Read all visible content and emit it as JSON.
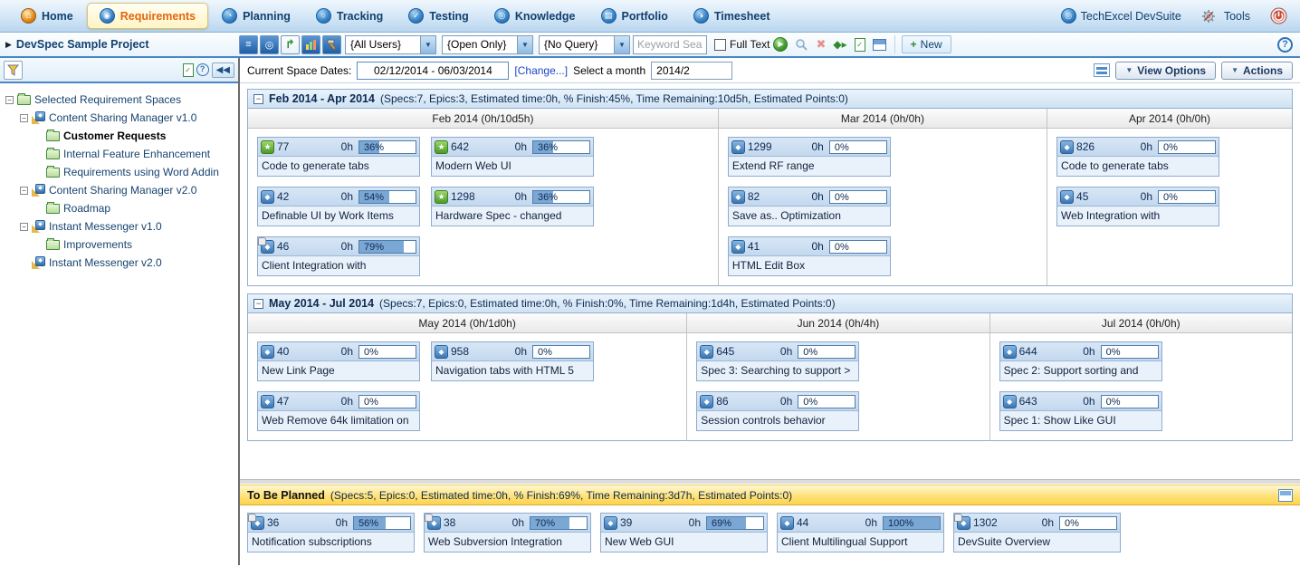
{
  "nav": {
    "tabs": [
      {
        "label": "Home",
        "icon": "home-icon",
        "glyph": "⌂",
        "active": false
      },
      {
        "label": "Requirements",
        "icon": "requirements-icon",
        "glyph": "◉",
        "active": true
      },
      {
        "label": "Planning",
        "icon": "planning-icon",
        "glyph": "◔",
        "active": false
      },
      {
        "label": "Tracking",
        "icon": "tracking-icon",
        "glyph": "○",
        "active": false
      },
      {
        "label": "Testing",
        "icon": "testing-icon",
        "glyph": "✓",
        "active": false
      },
      {
        "label": "Knowledge",
        "icon": "knowledge-icon",
        "glyph": "◎",
        "active": false
      },
      {
        "label": "Portfolio",
        "icon": "portfolio-icon",
        "glyph": "▤",
        "active": false
      },
      {
        "label": "Timesheet",
        "icon": "timesheet-icon",
        "glyph": "◑",
        "active": false
      }
    ],
    "brand": "TechExcel DevSuite",
    "tools_label": "Tools"
  },
  "toolbar": {
    "project": "DevSpec Sample Project",
    "view_icons": [
      "tree-view-icon",
      "cycle-view-icon",
      "branch-view-icon",
      "chart-view-icon",
      "design-view-icon"
    ],
    "filters": [
      {
        "value": "{All Users}"
      },
      {
        "value": "{Open Only}"
      },
      {
        "value": "{No Query}"
      }
    ],
    "keyword_placeholder": "Keyword Search",
    "full_text_label": "Full Text",
    "action_icons": [
      "go-icon",
      "search-icon",
      "clear-icon",
      "forward-icon",
      "report-icon",
      "panel-icon"
    ],
    "new_label": "New"
  },
  "sidebar": {
    "tree": [
      {
        "depth": 0,
        "icon": "folder",
        "label": "Selected Requirement Spaces",
        "expander": true
      },
      {
        "depth": 1,
        "icon": "project",
        "label": "Content Sharing Manager v1.0",
        "expander": true
      },
      {
        "depth": 2,
        "icon": "folder",
        "label": "Customer Requests",
        "bold": true
      },
      {
        "depth": 2,
        "icon": "folder",
        "label": "Internal Feature Enhancement"
      },
      {
        "depth": 2,
        "icon": "folder",
        "label": "Requirements using Word Addin"
      },
      {
        "depth": 1,
        "icon": "project",
        "label": "Content Sharing Manager v2.0",
        "expander": true
      },
      {
        "depth": 2,
        "icon": "folder",
        "label": "Roadmap"
      },
      {
        "depth": 1,
        "icon": "project",
        "label": "Instant Messenger v1.0",
        "expander": true
      },
      {
        "depth": 2,
        "icon": "folder",
        "label": "Improvements"
      },
      {
        "depth": 1,
        "icon": "project",
        "label": "Instant Messenger v2.0"
      }
    ]
  },
  "space_bar": {
    "dates_label": "Current Space Dates:",
    "dates_value": "02/12/2014 - 06/03/2014",
    "change_link": "[Change...]",
    "month_label": "Select a month",
    "month_value": "2014/2",
    "view_options_label": "View Options",
    "actions_label": "Actions"
  },
  "panels": [
    {
      "title": "Feb 2014 - Apr 2014",
      "stats": "(Specs:7, Epics:3, Estimated time:0h, % Finish:45%, Time Remaining:10d5h, Estimated Points:0)",
      "columns": [
        {
          "header": "Feb 2014 (0h/10d5h)",
          "width": "45%",
          "rows": [
            [
              {
                "id": "77",
                "icon": "epic",
                "hours": "0h",
                "percent": 36,
                "title": "Code to generate tabs"
              },
              {
                "id": "642",
                "icon": "epic",
                "hours": "0h",
                "percent": 36,
                "title": "Modern Web UI"
              }
            ],
            [
              {
                "id": "42",
                "icon": "spec",
                "hours": "0h",
                "percent": 54,
                "title": "Definable UI by Work Items"
              },
              {
                "id": "1298",
                "icon": "epic",
                "hours": "0h",
                "percent": 36,
                "title": "Hardware Spec - changed"
              }
            ],
            [
              {
                "id": "46",
                "icon": "spec-linked",
                "hours": "0h",
                "percent": 79,
                "title": "Client Integration with"
              }
            ]
          ]
        },
        {
          "header": "Mar 2014 (0h/0h)",
          "width": "31.5%",
          "rows": [
            [
              {
                "id": "1299",
                "icon": "spec",
                "hours": "0h",
                "percent": 0,
                "title": "Extend RF range"
              }
            ],
            [
              {
                "id": "82",
                "icon": "spec",
                "hours": "0h",
                "percent": 0,
                "title": "Save as.. Optimization"
              }
            ],
            [
              {
                "id": "41",
                "icon": "spec",
                "hours": "0h",
                "percent": 0,
                "title": "HTML Edit Box"
              }
            ]
          ]
        },
        {
          "header": "Apr 2014 (0h/0h)",
          "width": "23.5%",
          "rows": [
            [
              {
                "id": "826",
                "icon": "spec",
                "hours": "0h",
                "percent": 0,
                "title": "Code to generate tabs"
              }
            ],
            [
              {
                "id": "45",
                "icon": "spec",
                "hours": "0h",
                "percent": 0,
                "title": "Web Integration with"
              }
            ]
          ]
        }
      ],
      "body_min_height": 163
    },
    {
      "title": "May 2014 - Jul 2014",
      "stats": "(Specs:7, Epics:0, Estimated time:0h, % Finish:0%, Time Remaining:1d4h, Estimated Points:0)",
      "columns": [
        {
          "header": "May 2014 (0h/1d0h)",
          "width": "42%",
          "rows": [
            [
              {
                "id": "40",
                "icon": "spec",
                "hours": "0h",
                "percent": 0,
                "title": "New Link Page"
              },
              {
                "id": "958",
                "icon": "spec",
                "hours": "0h",
                "percent": 0,
                "title": "Navigation tabs with HTML 5"
              }
            ],
            [
              {
                "id": "47",
                "icon": "spec",
                "hours": "0h",
                "percent": 0,
                "title": "Web Remove 64k limitation on"
              }
            ]
          ]
        },
        {
          "header": "Jun 2014 (0h/4h)",
          "width": "29%",
          "rows": [
            [
              {
                "id": "645",
                "icon": "spec",
                "hours": "0h",
                "percent": 0,
                "title": "Spec 3: Searching to support >"
              }
            ],
            [
              {
                "id": "86",
                "icon": "spec",
                "hours": "0h",
                "percent": 0,
                "title": "Session controls behavior"
              }
            ]
          ]
        },
        {
          "header": "Jul 2014 (0h/0h)",
          "width": "29%",
          "rows": [
            [
              {
                "id": "644",
                "icon": "spec",
                "hours": "0h",
                "percent": 0,
                "title": "Spec 2: Support sorting and"
              }
            ],
            [
              {
                "id": "643",
                "icon": "spec",
                "hours": "0h",
                "percent": 0,
                "title": "Spec 1: Show Like GUI"
              }
            ]
          ]
        }
      ],
      "body_min_height": 106
    }
  ],
  "to_be_planned": {
    "title": "To Be Planned",
    "stats": "(Specs:5, Epics:0, Estimated time:0h, % Finish:69%, Time Remaining:3d7h, Estimated Points:0)",
    "cards": [
      {
        "id": "36",
        "icon": "spec-linked",
        "hours": "0h",
        "percent": 56,
        "title": "Notification subscriptions"
      },
      {
        "id": "38",
        "icon": "spec-linked",
        "hours": "0h",
        "percent": 70,
        "title": "Web Subversion Integration"
      },
      {
        "id": "39",
        "icon": "spec",
        "hours": "0h",
        "percent": 69,
        "title": "New Web GUI"
      },
      {
        "id": "44",
        "icon": "spec",
        "hours": "0h",
        "percent": 100,
        "title": "Client Multilingual Support"
      },
      {
        "id": "1302",
        "icon": "spec-linked",
        "hours": "0h",
        "percent": 0,
        "title": "DevSuite Overview"
      }
    ]
  },
  "colors": {
    "accent_blue": "#2f74b8",
    "progress_fill": "#7ba7d4",
    "tbp_yellow": "#fdd34d",
    "active_tab_text": "#e2660f"
  }
}
